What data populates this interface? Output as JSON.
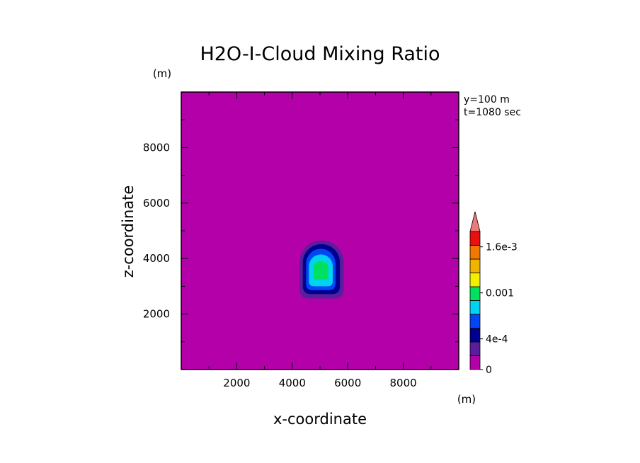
{
  "chart_data": {
    "type": "heatmap",
    "title": "H2O-I-Cloud Mixing Ratio",
    "xlabel": "x-coordinate",
    "ylabel": "z-coordinate",
    "x_unit": "(m)",
    "y_unit": "(m)",
    "xlim": [
      0,
      10000
    ],
    "ylim": [
      0,
      10000
    ],
    "x_ticks": [
      "2000",
      "4000",
      "6000",
      "8000"
    ],
    "y_ticks": [
      "2000",
      "4000",
      "6000",
      "8000"
    ],
    "annotations": [
      "y=100 m",
      "t=1080 sec"
    ],
    "colorbar": {
      "tick_labels": [
        "0",
        "4e-4",
        "0.001",
        "1.6e-3"
      ],
      "tick_values": [
        0,
        0.0004,
        0.001,
        0.0016
      ],
      "bins": [
        {
          "from": 0,
          "to": 0.0001,
          "color": "#b400a8"
        },
        {
          "from": 0.0001,
          "to": 0.0002,
          "color": "#5a1e9c"
        },
        {
          "from": 0.0002,
          "to": 0.0004,
          "color": "#000090"
        },
        {
          "from": 0.0004,
          "to": 0.0006,
          "color": "#0046f5"
        },
        {
          "from": 0.0006,
          "to": 0.0008,
          "color": "#00d2f0"
        },
        {
          "from": 0.0008,
          "to": 0.001,
          "color": "#00e060"
        },
        {
          "from": 0.001,
          "to": 0.0012,
          "color": "#f0f000"
        },
        {
          "from": 0.0012,
          "to": 0.0014,
          "color": "#f0b400"
        },
        {
          "from": 0.0014,
          "to": 0.0016,
          "color": "#f07800"
        },
        {
          "from": 0.0016,
          "to": 0.0018,
          "color": "#e81010"
        }
      ],
      "over_color": "#f07878",
      "background_color": "#b400a8"
    },
    "field": {
      "center_x": 5000,
      "center_z": 3600,
      "peak_value": 0.0009,
      "contours": [
        {
          "level": 0.0001,
          "x0": 4260,
          "x1": 5860,
          "z0": 2560,
          "z1": 4650,
          "color": "#5a1e9c"
        },
        {
          "level": 0.0002,
          "x0": 4380,
          "x1": 5720,
          "z0": 2720,
          "z1": 4520,
          "color": "#000090"
        },
        {
          "level": 0.0004,
          "x0": 4500,
          "x1": 5560,
          "z0": 2860,
          "z1": 4350,
          "color": "#0046f5"
        },
        {
          "level": 0.0006,
          "x0": 4600,
          "x1": 5460,
          "z0": 3000,
          "z1": 4150,
          "color": "#00d2f0"
        },
        {
          "level": 0.0008,
          "x0": 4760,
          "x1": 5300,
          "z0": 3250,
          "z1": 3920,
          "color": "#00e060"
        }
      ]
    }
  }
}
